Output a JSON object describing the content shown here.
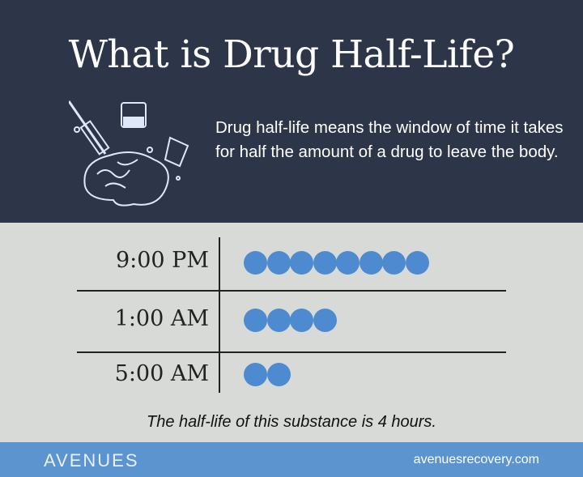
{
  "title": "What is Drug Half-Life?",
  "description": "Drug half-life means the window of time it takes for half the amount of a drug to leave the body.",
  "chart_data": {
    "type": "table",
    "categories": [
      "9:00 PM",
      "1:00 AM",
      "5:00 AM"
    ],
    "values": [
      8,
      4,
      2
    ],
    "dot_color": "#4e8ad0"
  },
  "caption": "The half-life of this substance is 4 hours.",
  "footer": {
    "logo": "AVENUES",
    "url": "avenuesrecovery.com"
  },
  "colors": {
    "header_bg": "#2d3548",
    "body_bg": "#d8dad8",
    "footer_bg": "#5b94cf"
  }
}
